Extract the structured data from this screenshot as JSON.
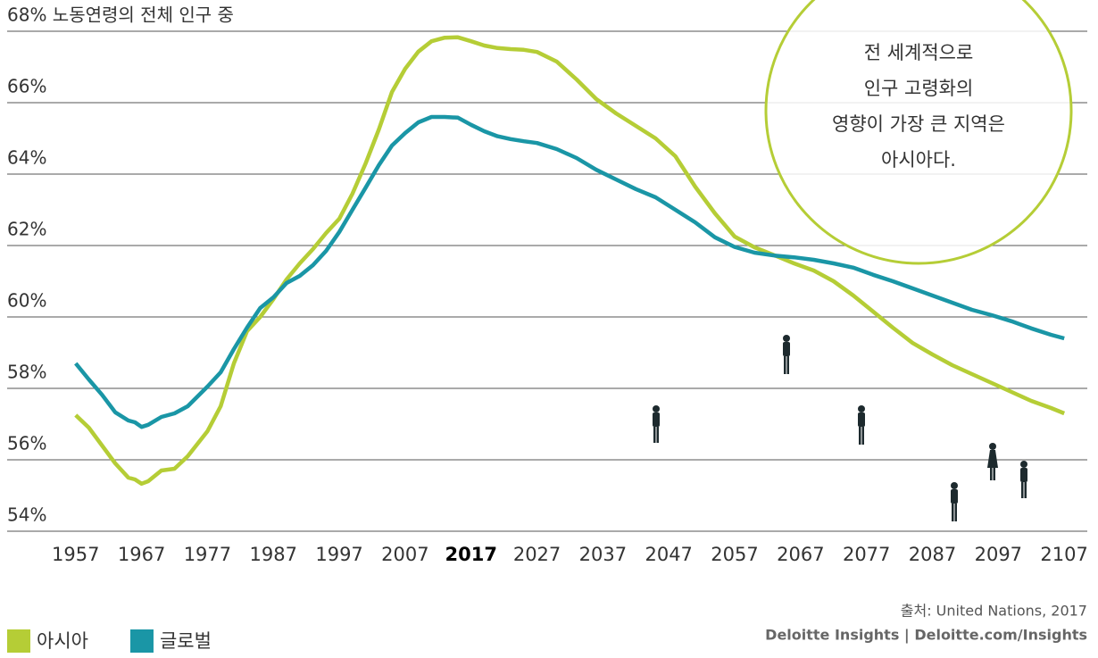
{
  "chart_data": {
    "type": "line",
    "x": [
      1957,
      1959,
      1961,
      1963,
      1965,
      1966,
      1967,
      1968,
      1970,
      1972,
      1974,
      1977,
      1979,
      1981,
      1983,
      1985,
      1987,
      1989,
      1991,
      1993,
      1995,
      1997,
      1999,
      2001,
      2003,
      2005,
      2007,
      2009,
      2011,
      2013,
      2015,
      2017,
      2019,
      2021,
      2023,
      2025,
      2027,
      2030,
      2033,
      2036,
      2039,
      2042,
      2045,
      2048,
      2051,
      2054,
      2057,
      2060,
      2063,
      2066,
      2069,
      2072,
      2075,
      2078,
      2081,
      2084,
      2087,
      2090,
      2093,
      2096,
      2099,
      2102,
      2105,
      2107
    ],
    "series": [
      {
        "name": "아시아",
        "color": "#b5cd36",
        "values": [
          57.25,
          56.9,
          56.4,
          55.9,
          55.5,
          55.45,
          55.33,
          55.4,
          55.7,
          55.75,
          56.1,
          56.8,
          57.5,
          58.7,
          59.6,
          60.0,
          60.5,
          61.05,
          61.5,
          61.9,
          62.35,
          62.75,
          63.45,
          64.3,
          65.25,
          66.3,
          66.95,
          67.43,
          67.72,
          67.82,
          67.83,
          67.72,
          67.6,
          67.53,
          67.5,
          67.48,
          67.42,
          67.15,
          66.65,
          66.1,
          65.7,
          65.35,
          65.0,
          64.5,
          63.65,
          62.9,
          62.25,
          61.95,
          61.73,
          61.5,
          61.3,
          61.0,
          60.6,
          60.15,
          59.7,
          59.27,
          58.95,
          58.65,
          58.4,
          58.15,
          57.9,
          57.65,
          57.45,
          57.3
        ]
      },
      {
        "name": "글로벌",
        "color": "#1a96a6",
        "values": [
          58.7,
          58.25,
          57.82,
          57.33,
          57.1,
          57.05,
          56.92,
          56.98,
          57.2,
          57.3,
          57.5,
          58.05,
          58.45,
          59.1,
          59.7,
          60.25,
          60.55,
          60.95,
          61.15,
          61.45,
          61.85,
          62.38,
          63.0,
          63.62,
          64.25,
          64.8,
          65.15,
          65.45,
          65.6,
          65.6,
          65.58,
          65.38,
          65.2,
          65.06,
          64.98,
          64.92,
          64.87,
          64.7,
          64.45,
          64.12,
          63.85,
          63.58,
          63.35,
          63.0,
          62.65,
          62.23,
          61.96,
          61.8,
          61.72,
          61.67,
          61.6,
          61.5,
          61.38,
          61.18,
          61.0,
          60.8,
          60.6,
          60.4,
          60.2,
          60.05,
          59.88,
          59.68,
          59.5,
          59.4
        ]
      }
    ],
    "xlim": [
      1946.6,
      2110.5
    ],
    "xticks": [
      1957,
      1967,
      1977,
      1987,
      1997,
      2007,
      2017,
      2027,
      2037,
      2047,
      2057,
      2067,
      2077,
      2087,
      2097,
      2107
    ],
    "highlight_xtick": 2017,
    "ylim": [
      54,
      68
    ],
    "yticks": [
      {
        "value": 54,
        "label": "54%"
      },
      {
        "value": 56,
        "label": "56%"
      },
      {
        "value": 58,
        "label": "58%"
      },
      {
        "value": 60,
        "label": "60%"
      },
      {
        "value": 62,
        "label": "62%"
      },
      {
        "value": 64,
        "label": "64%"
      },
      {
        "value": 66,
        "label": "66%"
      },
      {
        "value": 68,
        "label": "68% 노동연령의 전체 인구 중"
      }
    ],
    "grid": true,
    "annotation": [
      "전 세계적으로",
      "인구 고령화의",
      "영향이 가장 큰 지역은",
      "아시아다."
    ],
    "source": "출처: United Nations, 2017",
    "credit": "Deloitte Insights | Deloitte.com/Insights"
  }
}
